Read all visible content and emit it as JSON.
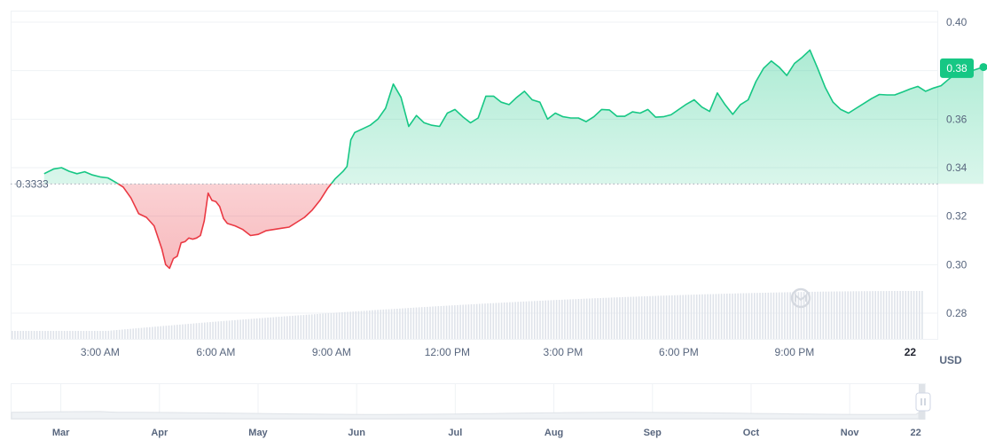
{
  "chart_data": {
    "type": "area",
    "unit": "USD",
    "baseline": 0.3333,
    "baseline_label": "0.3333",
    "last_value": 0.381,
    "last_label": "0.38",
    "ylim": [
      0.27,
      0.4
    ],
    "y_ticks": [
      "0.40",
      "0.38",
      "0.36",
      "0.34",
      "0.32",
      "0.30",
      "0.28"
    ],
    "x_ticks": [
      {
        "label": "3:00 AM",
        "h": 3
      },
      {
        "label": "6:00 AM",
        "h": 6
      },
      {
        "label": "9:00 AM",
        "h": 9
      },
      {
        "label": "12:00 PM",
        "h": 12
      },
      {
        "label": "3:00 PM",
        "h": 15
      },
      {
        "label": "6:00 PM",
        "h": 18
      },
      {
        "label": "9:00 PM",
        "h": 21
      },
      {
        "label": "22",
        "h": 24,
        "bold": true
      }
    ],
    "xlim_hours": [
      0.75,
      26.0
    ],
    "series": [
      {
        "x_hours": [
          1.55,
          1.8,
          2.0,
          2.2,
          2.4,
          2.6,
          2.8,
          3.0,
          3.2,
          3.4,
          3.6,
          3.8,
          4.0,
          4.2,
          4.4,
          4.6,
          4.7,
          4.8,
          4.9,
          5.0,
          5.1,
          5.2,
          5.3,
          5.4,
          5.5,
          5.6,
          5.7,
          5.8,
          5.9,
          6.0,
          6.1,
          6.2,
          6.3,
          6.5,
          6.7,
          6.9,
          7.1,
          7.3,
          7.5,
          7.7,
          7.9,
          8.1,
          8.3,
          8.5,
          8.7,
          8.9,
          9.1,
          9.2,
          9.3,
          9.4,
          9.5,
          9.6,
          9.8,
          10.0,
          10.2,
          10.4,
          10.6,
          10.8,
          11.0,
          11.2,
          11.4,
          11.6,
          11.8,
          12.0,
          12.2,
          12.4,
          12.6,
          12.8,
          13.0,
          13.2,
          13.4,
          13.6,
          13.8,
          14.0,
          14.2,
          14.4,
          14.6,
          14.8,
          15.0,
          15.2,
          15.4,
          15.6,
          15.8,
          16.0,
          16.2,
          16.4,
          16.6,
          16.8,
          17.0,
          17.2,
          17.4,
          17.6,
          17.8,
          18.0,
          18.2,
          18.4,
          18.6,
          18.8,
          19.0,
          19.2,
          19.4,
          19.6,
          19.8,
          20.0,
          20.2,
          20.4,
          20.6,
          20.8,
          21.0,
          21.2,
          21.4,
          21.6,
          21.8,
          22.0,
          22.2,
          22.4,
          22.6,
          22.8,
          23.0,
          23.2,
          23.4,
          23.6,
          23.8,
          24.0,
          24.2,
          24.4,
          24.6,
          24.8,
          25.0,
          25.2,
          25.4,
          25.6,
          25.8,
          25.9
        ],
        "values": [
          0.3375,
          0.3395,
          0.34,
          0.3385,
          0.3375,
          0.3383,
          0.337,
          0.3362,
          0.3358,
          0.334,
          0.332,
          0.3275,
          0.321,
          0.3195,
          0.316,
          0.3065,
          0.3,
          0.2985,
          0.3025,
          0.3035,
          0.309,
          0.3095,
          0.311,
          0.3105,
          0.311,
          0.312,
          0.318,
          0.3295,
          0.3265,
          0.326,
          0.324,
          0.319,
          0.317,
          0.316,
          0.3145,
          0.312,
          0.3125,
          0.314,
          0.3145,
          0.315,
          0.3155,
          0.3175,
          0.3195,
          0.3225,
          0.3265,
          0.3315,
          0.3355,
          0.337,
          0.3385,
          0.3405,
          0.3515,
          0.3545,
          0.356,
          0.3575,
          0.36,
          0.3645,
          0.3745,
          0.369,
          0.357,
          0.3615,
          0.3585,
          0.3575,
          0.357,
          0.3625,
          0.364,
          0.361,
          0.3585,
          0.3605,
          0.3695,
          0.3695,
          0.367,
          0.366,
          0.369,
          0.3715,
          0.368,
          0.367,
          0.36,
          0.3625,
          0.361,
          0.3605,
          0.3605,
          0.359,
          0.361,
          0.364,
          0.3638,
          0.3612,
          0.3612,
          0.363,
          0.3625,
          0.364,
          0.3608,
          0.361,
          0.3618,
          0.364,
          0.3662,
          0.368,
          0.365,
          0.3632,
          0.3708,
          0.366,
          0.362,
          0.366,
          0.368,
          0.3755,
          0.381,
          0.384,
          0.3815,
          0.378,
          0.383,
          0.3855,
          0.3885,
          0.381,
          0.373,
          0.367,
          0.364,
          0.3625,
          0.3645,
          0.3665,
          0.3685,
          0.3702,
          0.37,
          0.37,
          0.3712,
          0.3725,
          0.3735,
          0.3715,
          0.3728,
          0.3738,
          0.3765,
          0.379,
          0.378,
          0.38,
          0.381,
          0.3815
        ]
      }
    ],
    "above_color": "#16c784",
    "below_color": "#ea3943",
    "navigator_labels": [
      {
        "label": "Mar",
        "m": 3
      },
      {
        "label": "Apr",
        "m": 4
      },
      {
        "label": "May",
        "m": 5
      },
      {
        "label": "Jun",
        "m": 6
      },
      {
        "label": "Jul",
        "m": 7
      },
      {
        "label": "Aug",
        "m": 8
      },
      {
        "label": "Sep",
        "m": 9
      },
      {
        "label": "Oct",
        "m": 10
      },
      {
        "label": "Nov",
        "m": 11
      },
      {
        "label": "22",
        "m": 11.67
      }
    ],
    "navigator_xlim_months": [
      2.5,
      11.7
    ],
    "handle_icon": "grip-lines-icon",
    "watermark_icon": "coinmarketcap-logo-icon"
  }
}
